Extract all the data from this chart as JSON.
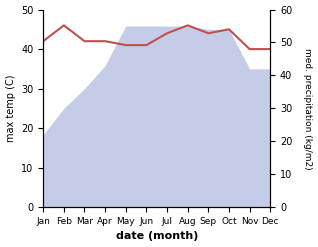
{
  "months": [
    "Jan",
    "Feb",
    "Mar",
    "Apr",
    "May",
    "Jun",
    "Jul",
    "Aug",
    "Sep",
    "Oct",
    "Nov",
    "Dec"
  ],
  "temperature": [
    42,
    46,
    42,
    42,
    41,
    41,
    44,
    46,
    44,
    45,
    40,
    40
  ],
  "precipitation_right": [
    22,
    30,
    36,
    43,
    55,
    55,
    55,
    55,
    54,
    54,
    42,
    42
  ],
  "temp_color": "#c0504d",
  "precip_color": "#c5cce8",
  "ylabel_left": "max temp (C)",
  "ylabel_right": "med. precipitation (kg/m2)",
  "xlabel": "date (month)",
  "ylim_left": [
    0,
    50
  ],
  "ylim_right": [
    0,
    60
  ],
  "bg_color": "#ffffff"
}
